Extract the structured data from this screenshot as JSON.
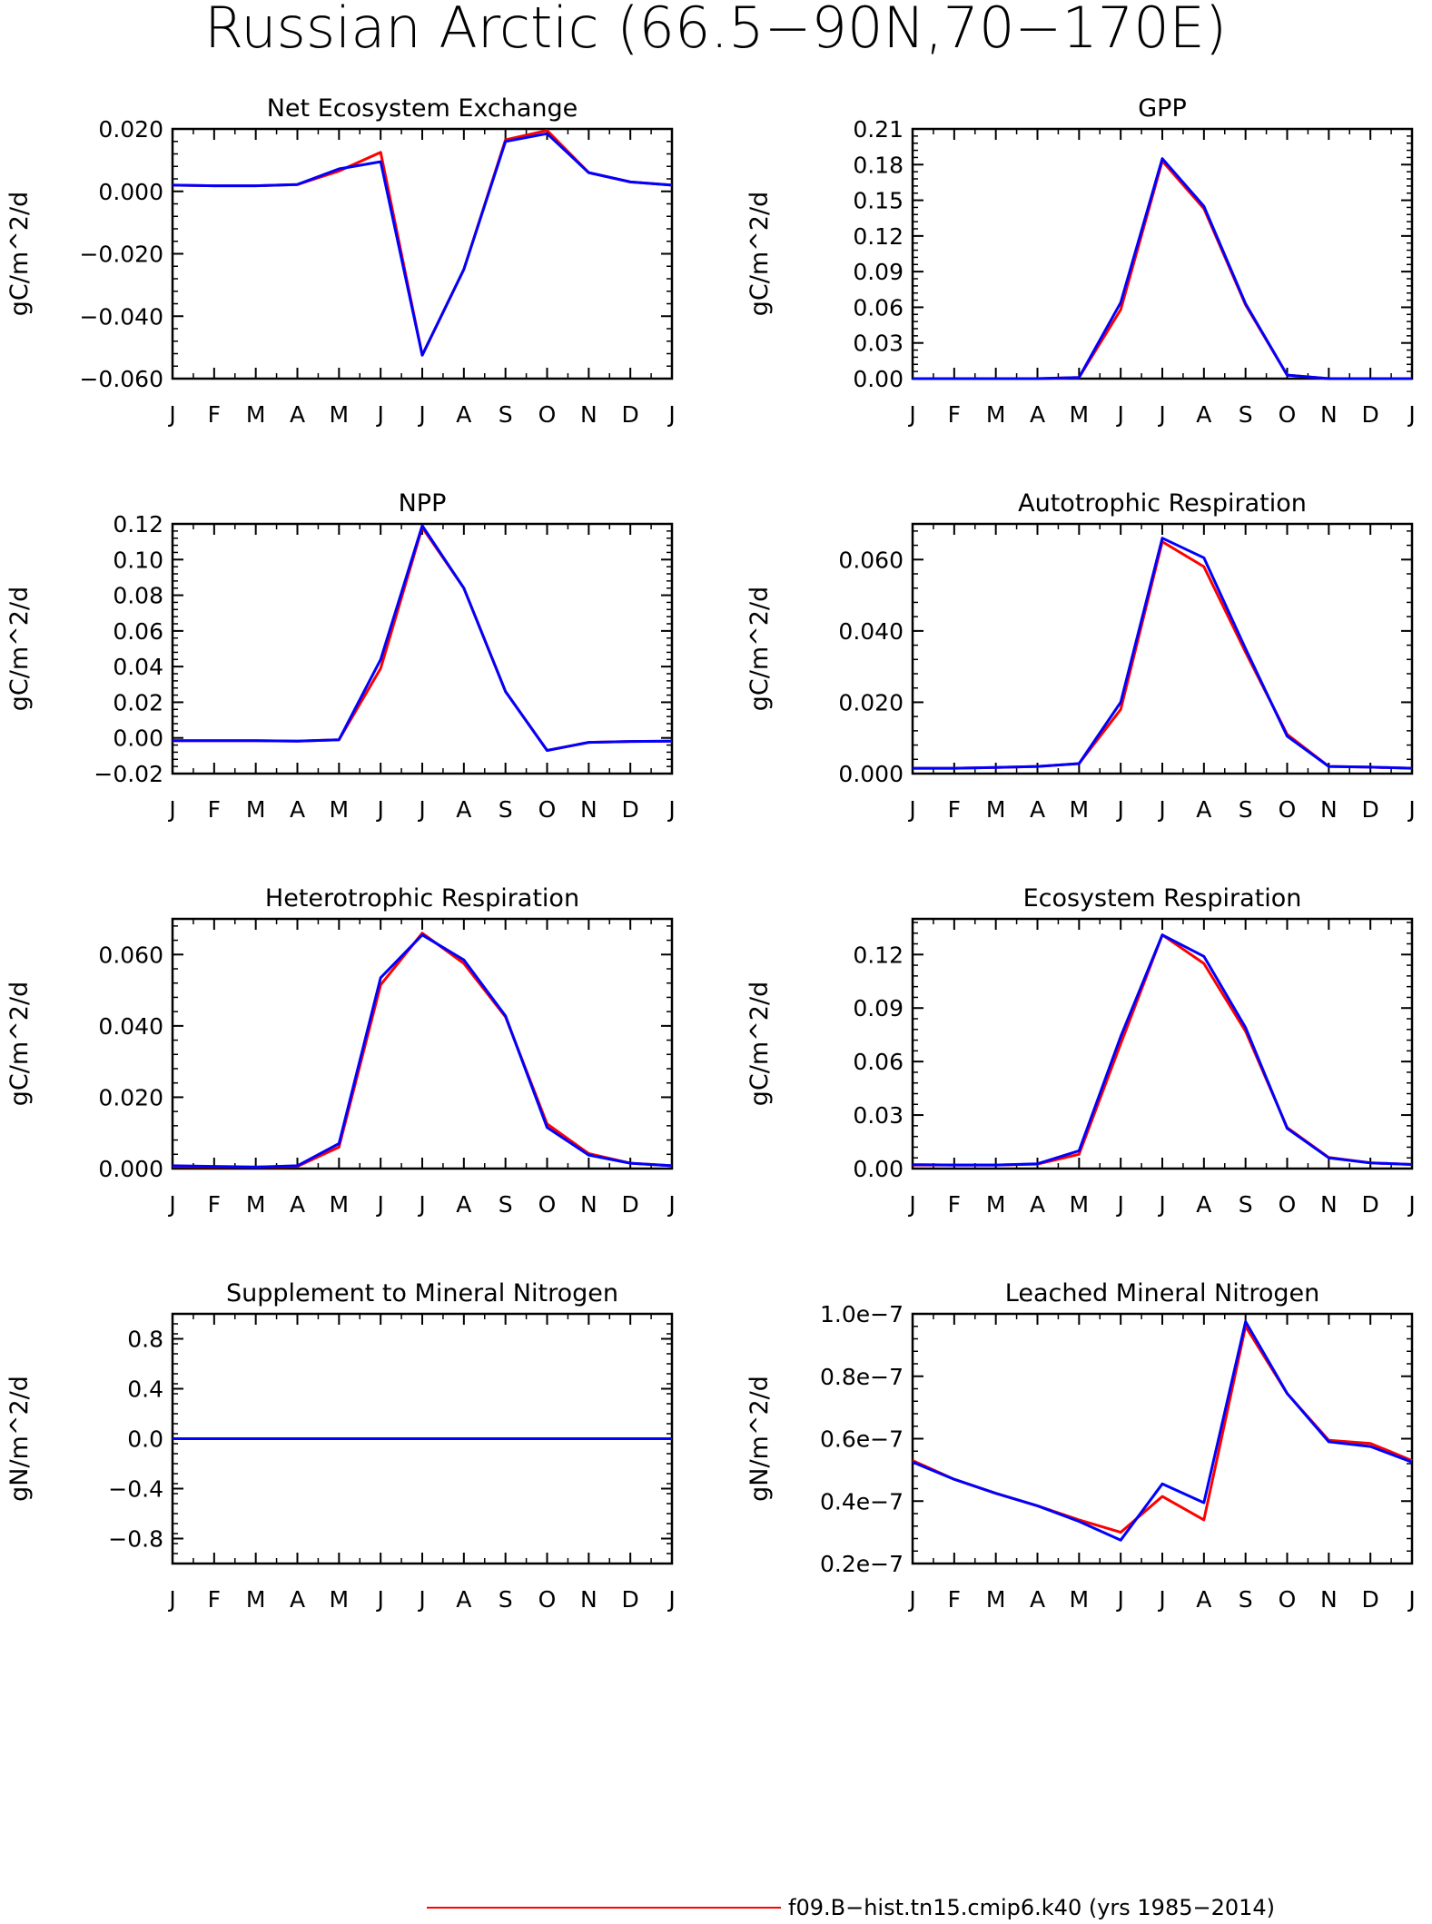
{
  "title": "Russian Arctic (66.5−90N,70−170E)",
  "legend": {
    "label": "f09.B−hist.tn15.cmip6.k40 (yrs 1985−2014)",
    "color": "#ff0000"
  },
  "colors": {
    "run_red": "#ff0000",
    "run_blue": "#0000ff",
    "axis": "#000000"
  },
  "months": [
    "J",
    "F",
    "M",
    "A",
    "M",
    "J",
    "J",
    "A",
    "S",
    "O",
    "N",
    "D",
    "J"
  ],
  "chart_data": [
    {
      "type": "line",
      "title": "Net Ecosystem Exchange",
      "ylabel": "gC/m^2/d",
      "ylim": [
        -0.06,
        0.02
      ],
      "yticks": [
        -0.06,
        -0.04,
        -0.02,
        0.0,
        0.02
      ],
      "yticklabels": [
        "−0.060",
        "−0.040",
        "−0.020",
        "0.000",
        "0.020"
      ],
      "series": [
        {
          "color": "#ff0000",
          "values": [
            0.002,
            0.0018,
            0.0018,
            0.0022,
            0.0065,
            0.0125,
            -0.0525,
            -0.025,
            0.0165,
            0.0195,
            0.006,
            0.003,
            0.002
          ]
        },
        {
          "color": "#0000ff",
          "values": [
            0.002,
            0.0018,
            0.0018,
            0.0022,
            0.0072,
            0.0095,
            -0.0525,
            -0.025,
            0.016,
            0.0185,
            0.006,
            0.003,
            0.002
          ]
        }
      ]
    },
    {
      "type": "line",
      "title": "GPP",
      "ylabel": "gC/m^2/d",
      "ylim": [
        0.0,
        0.21
      ],
      "yticks": [
        0.0,
        0.03,
        0.06,
        0.09,
        0.12,
        0.15,
        0.18,
        0.21
      ],
      "yticklabels": [
        "0.00",
        "0.03",
        "0.06",
        "0.09",
        "0.12",
        "0.15",
        "0.18",
        "0.21"
      ],
      "series": [
        {
          "color": "#ff0000",
          "values": [
            0.0,
            0.0,
            0.0,
            0.0,
            0.001,
            0.058,
            0.183,
            0.143,
            0.062,
            0.003,
            0.0,
            0.0,
            0.0
          ]
        },
        {
          "color": "#0000ff",
          "values": [
            0.0,
            0.0,
            0.0,
            0.0,
            0.001,
            0.064,
            0.185,
            0.145,
            0.063,
            0.003,
            0.0,
            0.0,
            0.0
          ]
        }
      ]
    },
    {
      "type": "line",
      "title": "NPP",
      "ylabel": "gC/m^2/d",
      "ylim": [
        -0.02,
        0.12
      ],
      "yticks": [
        -0.02,
        0.0,
        0.02,
        0.04,
        0.06,
        0.08,
        0.1,
        0.12
      ],
      "yticklabels": [
        "−0.02",
        "0.00",
        "0.02",
        "0.04",
        "0.06",
        "0.08",
        "0.10",
        "0.12"
      ],
      "series": [
        {
          "color": "#ff0000",
          "values": [
            -0.0015,
            -0.0015,
            -0.0015,
            -0.0018,
            -0.001,
            0.039,
            0.118,
            0.084,
            0.026,
            -0.007,
            -0.0025,
            -0.002,
            -0.0018
          ]
        },
        {
          "color": "#0000ff",
          "values": [
            -0.0015,
            -0.0015,
            -0.0015,
            -0.0018,
            -0.001,
            0.044,
            0.119,
            0.084,
            0.026,
            -0.007,
            -0.0025,
            -0.002,
            -0.0018
          ]
        }
      ]
    },
    {
      "type": "line",
      "title": "Autotrophic Respiration",
      "ylabel": "gC/m^2/d",
      "ylim": [
        0.0,
        0.07
      ],
      "yticks": [
        0.0,
        0.02,
        0.04,
        0.06
      ],
      "yticklabels": [
        "0.000",
        "0.020",
        "0.040",
        "0.060"
      ],
      "series": [
        {
          "color": "#ff0000",
          "values": [
            0.0015,
            0.0015,
            0.0017,
            0.002,
            0.0028,
            0.018,
            0.065,
            0.058,
            0.034,
            0.011,
            0.002,
            0.0018,
            0.0015
          ]
        },
        {
          "color": "#0000ff",
          "values": [
            0.0015,
            0.0015,
            0.0017,
            0.002,
            0.0028,
            0.02,
            0.066,
            0.0605,
            0.035,
            0.0105,
            0.002,
            0.0018,
            0.0015
          ]
        }
      ]
    },
    {
      "type": "line",
      "title": "Heterotrophic Respiration",
      "ylabel": "gC/m^2/d",
      "ylim": [
        0.0,
        0.07
      ],
      "yticks": [
        0.0,
        0.02,
        0.04,
        0.06
      ],
      "yticklabels": [
        "0.000",
        "0.020",
        "0.040",
        "0.060"
      ],
      "series": [
        {
          "color": "#ff0000",
          "values": [
            0.0006,
            0.0005,
            0.0004,
            0.0006,
            0.006,
            0.0515,
            0.066,
            0.0575,
            0.0425,
            0.0125,
            0.0042,
            0.0015,
            0.0008
          ]
        },
        {
          "color": "#0000ff",
          "values": [
            0.0008,
            0.0006,
            0.0004,
            0.0008,
            0.007,
            0.0535,
            0.0655,
            0.0585,
            0.0428,
            0.0115,
            0.0038,
            0.0015,
            0.0008
          ]
        }
      ]
    },
    {
      "type": "line",
      "title": "Ecosystem Respiration",
      "ylabel": "gC/m^2/d",
      "ylim": [
        0.0,
        0.14
      ],
      "yticks": [
        0.0,
        0.03,
        0.06,
        0.09,
        0.12
      ],
      "yticklabels": [
        "0.00",
        "0.03",
        "0.06",
        "0.09",
        "0.12"
      ],
      "series": [
        {
          "color": "#ff0000",
          "values": [
            0.002,
            0.002,
            0.002,
            0.0025,
            0.008,
            0.07,
            0.131,
            0.115,
            0.077,
            0.023,
            0.0062,
            0.0032,
            0.0023
          ]
        },
        {
          "color": "#0000ff",
          "values": [
            0.0022,
            0.002,
            0.002,
            0.0027,
            0.01,
            0.074,
            0.131,
            0.119,
            0.079,
            0.0225,
            0.006,
            0.0032,
            0.0023
          ]
        }
      ]
    },
    {
      "type": "line",
      "title": "Supplement to Mineral Nitrogen",
      "ylabel": "gN/m^2/d",
      "ylim": [
        -1.0,
        1.0
      ],
      "yticks": [
        -0.8,
        -0.4,
        0.0,
        0.4,
        0.8
      ],
      "yticklabels": [
        "−0.8",
        "−0.4",
        "0.0",
        "0.4",
        "0.8"
      ],
      "series": [
        {
          "color": "#ff0000",
          "values": [
            0,
            0,
            0,
            0,
            0,
            0,
            0,
            0,
            0,
            0,
            0,
            0,
            0
          ]
        },
        {
          "color": "#0000ff",
          "values": [
            0,
            0,
            0,
            0,
            0,
            0,
            0,
            0,
            0,
            0,
            0,
            0,
            0
          ]
        }
      ]
    },
    {
      "type": "line",
      "title": "Leached Mineral Nitrogen",
      "ylabel": "gN/m^2/d",
      "ylim": [
        2e-08,
        1e-07
      ],
      "yticks": [
        2e-08,
        4e-08,
        6e-08,
        8e-08,
        1e-07
      ],
      "yticklabels": [
        "0.2e−7",
        "0.4e−7",
        "0.6e−7",
        "0.8e−7",
        "1.0e−7"
      ],
      "series": [
        {
          "color": "#ff0000",
          "values": [
            5.3e-08,
            4.7e-08,
            4.25e-08,
            3.85e-08,
            3.4e-08,
            3e-08,
            4.15e-08,
            3.4e-08,
            9.6e-08,
            7.45e-08,
            5.95e-08,
            5.85e-08,
            5.3e-08
          ]
        },
        {
          "color": "#0000ff",
          "values": [
            5.25e-08,
            4.7e-08,
            4.25e-08,
            3.85e-08,
            3.35e-08,
            2.75e-08,
            4.55e-08,
            3.95e-08,
            9.75e-08,
            7.45e-08,
            5.9e-08,
            5.75e-08,
            5.25e-08
          ]
        }
      ]
    }
  ]
}
